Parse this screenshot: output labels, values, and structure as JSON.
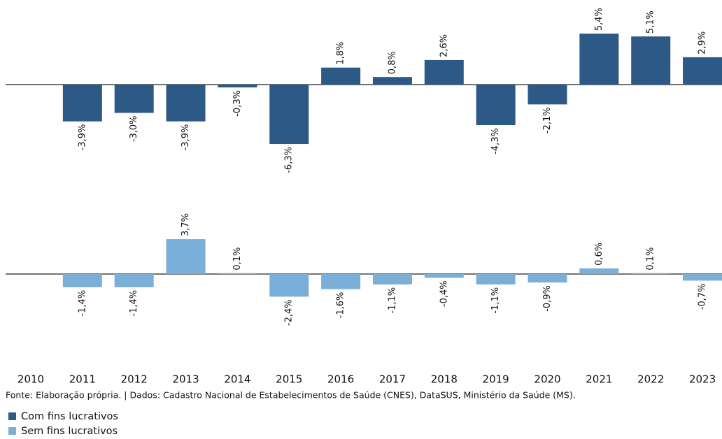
{
  "chart_data": {
    "type": "bar",
    "categories": [
      "2010",
      "2011",
      "2012",
      "2013",
      "2014",
      "2015",
      "2016",
      "2017",
      "2018",
      "2019",
      "2020",
      "2021",
      "2022",
      "2023"
    ],
    "series": [
      {
        "name": "Com fins lucrativos",
        "color": "#2d5986",
        "values": [
          null,
          -3.9,
          -3.0,
          -3.9,
          -0.3,
          -6.3,
          1.8,
          0.8,
          2.6,
          -4.3,
          -2.1,
          5.4,
          5.1,
          2.9
        ],
        "value_labels": [
          null,
          "-3,9%",
          "-3,0%",
          "-3,9%",
          "-0,3%",
          "-6,3%",
          "1,8%",
          "0,8%",
          "2,6%",
          "-4,3%",
          "-2,1%",
          "5,4%",
          "5,1%",
          "2,9%"
        ]
      },
      {
        "name": "Sem fins lucrativos",
        "color": "#7bafd8",
        "values": [
          null,
          -1.4,
          -1.4,
          3.7,
          0.1,
          -2.4,
          -1.6,
          -1.1,
          -0.4,
          -1.1,
          -0.9,
          0.6,
          0.1,
          -0.7
        ],
        "value_labels": [
          null,
          "-1,4%",
          "-1,4%",
          "3,7%",
          "0,1%",
          "-2,4%",
          "-1,6%",
          "-1,1%",
          "-0,4%",
          "-1,1%",
          "-0,9%",
          "0,6%",
          "0,1%",
          "-0,7%"
        ]
      }
    ],
    "source": "Fonte: Elaboração própria. | Dados: Cadastro Nacional de Estabelecimentos de Saúde (CNES), DataSUS, Ministério da Saúde (MS)."
  }
}
